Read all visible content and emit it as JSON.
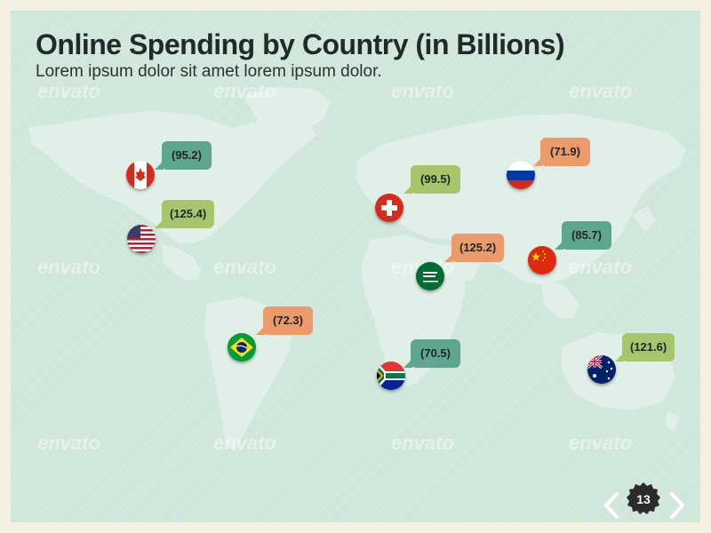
{
  "slide": {
    "title": "Online Spending by Country (in Billions)",
    "subtitle": "Lorem ipsum dolor sit amet lorem ipsum dolor.",
    "watermark": "envato",
    "page_number": "13",
    "colors": {
      "background": "#cfe6da",
      "teal": "#5fa691",
      "green": "#a5c66a",
      "orange": "#ec9a6a"
    }
  },
  "countries": [
    {
      "flag": "canada-flag",
      "value": "(95.2)",
      "color": "teal"
    },
    {
      "flag": "usa-flag",
      "value": "(125.4)",
      "color": "green"
    },
    {
      "flag": "switzerland-flag",
      "value": "(99.5)",
      "color": "green"
    },
    {
      "flag": "russia-flag",
      "value": "(71.9)",
      "color": "orange"
    },
    {
      "flag": "saudi-arabia-flag",
      "value": "(125.2)",
      "color": "orange"
    },
    {
      "flag": "china-flag",
      "value": "(85.7)",
      "color": "teal"
    },
    {
      "flag": "brazil-flag",
      "value": "(72.3)",
      "color": "orange"
    },
    {
      "flag": "south-africa-flag",
      "value": "(70.5)",
      "color": "teal"
    },
    {
      "flag": "australia-flag",
      "value": "(121.6)",
      "color": "green"
    }
  ],
  "nav": {
    "prev_icon": "chevron-left-icon",
    "next_icon": "chevron-right-icon"
  }
}
